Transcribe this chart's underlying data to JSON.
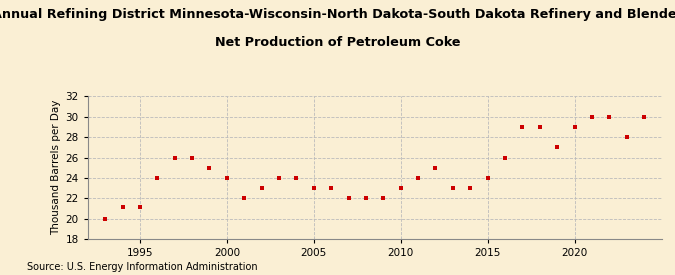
{
  "title_line1": "Annual Refining District Minnesota-Wisconsin-North Dakota-South Dakota Refinery and Blender",
  "title_line2": "Net Production of Petroleum Coke",
  "ylabel": "Thousand Barrels per Day",
  "source": "Source: U.S. Energy Information Administration",
  "background_color": "#faefd4",
  "marker_color": "#cc0000",
  "years": [
    1993,
    1994,
    1995,
    1996,
    1997,
    1998,
    1999,
    2000,
    2001,
    2002,
    2003,
    2004,
    2005,
    2006,
    2007,
    2008,
    2009,
    2010,
    2011,
    2012,
    2013,
    2014,
    2015,
    2016,
    2017,
    2018,
    2019,
    2020,
    2021,
    2022,
    2023,
    2024
  ],
  "values": [
    20.0,
    21.2,
    21.2,
    24.0,
    26.0,
    26.0,
    25.0,
    24.0,
    22.0,
    23.0,
    24.0,
    24.0,
    23.0,
    23.0,
    22.0,
    22.0,
    22.0,
    23.0,
    24.0,
    25.0,
    23.0,
    23.0,
    24.0,
    26.0,
    29.0,
    29.0,
    27.0,
    29.0,
    30.0,
    30.0,
    28.0,
    30.0
  ],
  "xlim": [
    1992,
    2025
  ],
  "ylim": [
    18,
    32
  ],
  "yticks": [
    18,
    20,
    22,
    24,
    26,
    28,
    30,
    32
  ],
  "xticks": [
    1995,
    2000,
    2005,
    2010,
    2015,
    2020
  ],
  "grid_color": "#bbbbbb",
  "title_fontsize": 9.2,
  "axis_fontsize": 7.5,
  "tick_fontsize": 7.5,
  "source_fontsize": 7.0
}
